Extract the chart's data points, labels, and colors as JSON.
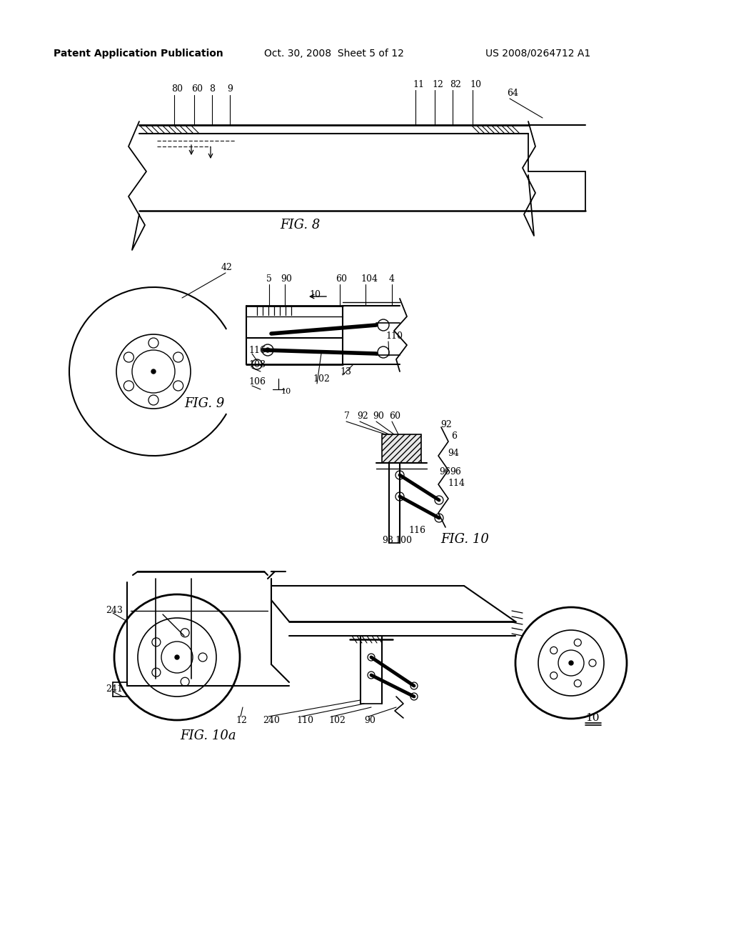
{
  "bg_color": "#ffffff",
  "text_color": "#000000",
  "header_left": "Patent Application Publication",
  "header_center": "Oct. 30, 2008  Sheet 5 of 12",
  "header_right": "US 2008/0264712 A1",
  "fig8_label": "FIG. 8",
  "fig9_label": "FIG. 9",
  "fig10_label": "FIG. 10",
  "fig10a_label": "FIG. 10a"
}
